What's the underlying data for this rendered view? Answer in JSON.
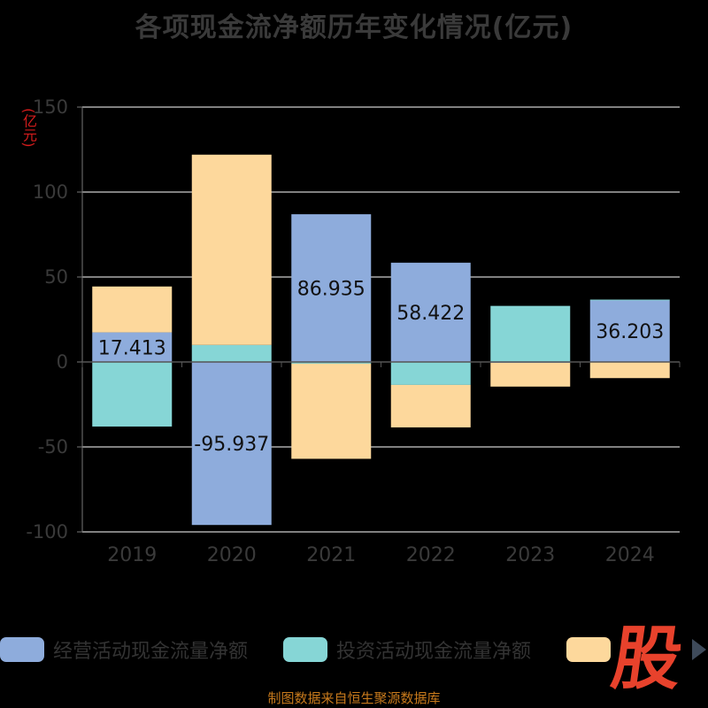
{
  "title": "各项现金流净额历年变化情况(亿元)",
  "unit_label": "(亿元)",
  "colors": {
    "operating": "#8eacdc",
    "investing": "#86d6d6",
    "financing": "#fdd89c",
    "axis_text": "#3a3a3a",
    "grid": "#ffffff"
  },
  "legend": {
    "items": [
      {
        "label": "经营活动现金流量净额",
        "color": "#8eacdc"
      },
      {
        "label": "投资活动现金流量净额",
        "color": "#86d6d6"
      },
      {
        "label": "",
        "color": "#fdd89c"
      }
    ]
  },
  "logo_text": "股",
  "footer": "制图数据来自恒生聚源数据库",
  "chart_data": {
    "type": "bar",
    "stacked": true,
    "title": "各项现金流净额历年变化情况(亿元)",
    "ylabel": "(亿元)",
    "ylim": [
      -100,
      150
    ],
    "yticks": [
      -100,
      -50,
      0,
      50,
      100,
      150
    ],
    "grid": true,
    "categories": [
      "2019",
      "2020",
      "2021",
      "2022",
      "2023",
      "2024"
    ],
    "series": [
      {
        "name": "经营活动现金流量净额",
        "color": "#8eacdc",
        "values": [
          17.413,
          -95.937,
          86.935,
          58.422,
          -0.5,
          36.203
        ],
        "labels": [
          "17.413",
          "-95.937",
          "86.935",
          "58.422",
          "",
          "36.203"
        ]
      },
      {
        "name": "投资活动现金流量净额",
        "color": "#86d6d6",
        "values": [
          -38.0,
          10.0,
          -1.0,
          -13.5,
          33.0,
          0.5
        ]
      },
      {
        "color": "#fdd89c",
        "values": [
          27.0,
          112.0,
          -56.0,
          -25.0,
          -14.0,
          -9.5
        ]
      }
    ]
  }
}
